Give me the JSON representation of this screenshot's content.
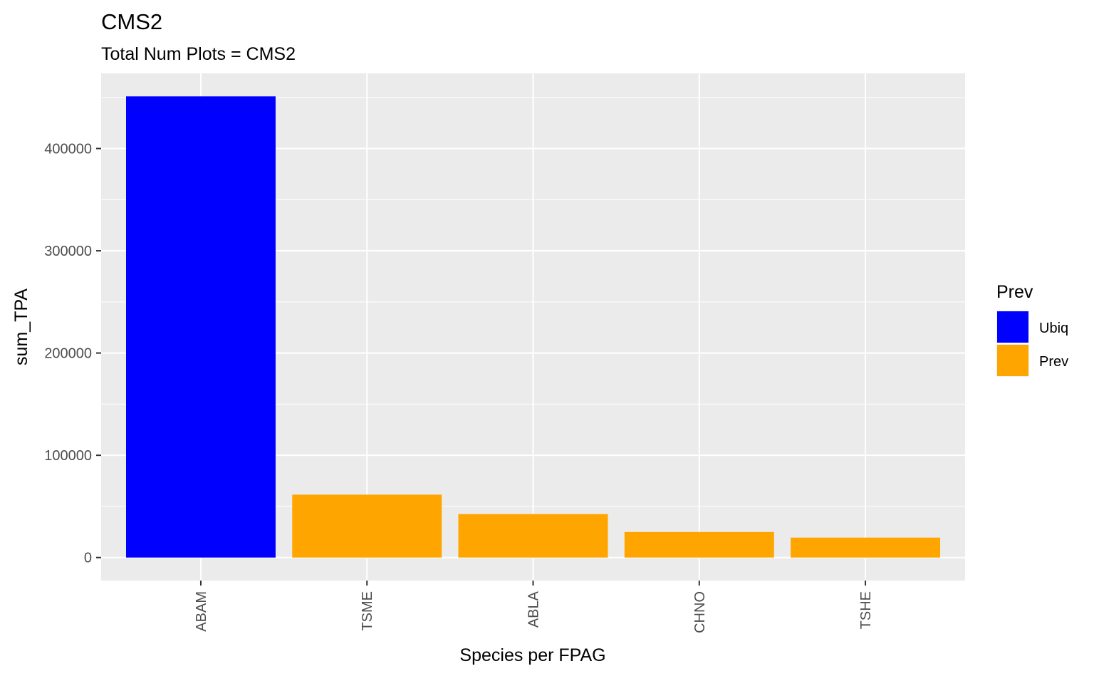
{
  "chart_data": {
    "type": "bar",
    "title": "CMS2",
    "subtitle": "Total Num Plots = CMS2",
    "xlabel": "Species per FPAG",
    "ylabel": "sum_TPA",
    "categories": [
      "ABAM",
      "TSME",
      "ABLA",
      "CHNO",
      "TSHE"
    ],
    "values": [
      451000,
      61500,
      42500,
      25000,
      19500
    ],
    "groups": [
      "Ubiq",
      "Prev",
      "Prev",
      "Prev",
      "Prev"
    ],
    "ylim": [
      -22500,
      473500
    ],
    "yticks": [
      0,
      100000,
      200000,
      300000,
      400000
    ],
    "ytick_labels": [
      "0",
      "100000",
      "200000",
      "300000",
      "400000"
    ],
    "grid": true,
    "legend": {
      "title": "Prev",
      "placement": "right",
      "entries": [
        {
          "label": "Ubiq",
          "color": "#0000ff"
        },
        {
          "label": "Prev",
          "color": "#ffa500"
        }
      ]
    },
    "colors": {
      "Ubiq": "#0000ff",
      "Prev": "#ffa500"
    }
  }
}
